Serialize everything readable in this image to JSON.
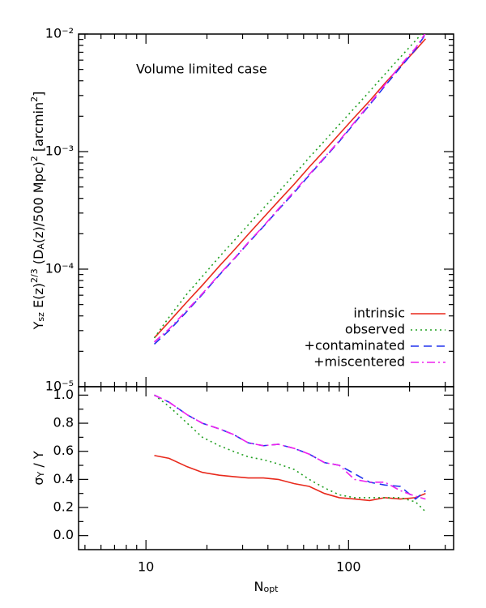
{
  "chart_data": [
    {
      "type": "line",
      "annotation": "Volume limited case",
      "ylabel": [
        {
          "text": "Y"
        },
        {
          "text": "sz",
          "sub": true
        },
        {
          "text": "  E(z)"
        },
        {
          "text": "2/3",
          "sup": true
        },
        {
          "text": " (D"
        },
        {
          "text": "A",
          "sub": true
        },
        {
          "text": "(z)/500 Mpc)"
        },
        {
          "text": "2",
          "sup": true
        },
        {
          "text": " [arcmin"
        },
        {
          "text": "2",
          "sup": true
        },
        {
          "text": "]"
        }
      ],
      "xlog": true,
      "ylog": true,
      "legend": "lower right",
      "xlim": [
        4.65,
        330
      ],
      "ylim": [
        1e-05,
        0.01
      ],
      "xticks": [
        10,
        100
      ],
      "xminorticks": [
        5,
        6,
        7,
        8,
        9,
        20,
        30,
        40,
        50,
        60,
        70,
        80,
        90,
        200,
        300
      ],
      "yticks": [
        {
          "value": 1e-05,
          "label": "10⁻⁵"
        },
        {
          "value": 0.0001,
          "label": "10⁻⁴"
        },
        {
          "value": 0.001,
          "label": "10⁻³"
        },
        {
          "value": 0.01,
          "label": "10⁻²"
        }
      ],
      "yminorticks": [
        2e-05,
        3e-05,
        4e-05,
        5e-05,
        6e-05,
        7e-05,
        8e-05,
        9e-05,
        0.0002,
        0.0003,
        0.0004,
        0.0005,
        0.0006,
        0.0007,
        0.0008,
        0.0009,
        0.002,
        0.003,
        0.004,
        0.005,
        0.006,
        0.007,
        0.008,
        0.009
      ],
      "x": [
        11,
        13,
        16,
        19,
        23,
        27,
        32,
        38,
        45,
        54,
        64,
        76,
        90,
        107,
        127,
        151,
        180,
        214,
        240
      ],
      "series": [
        {
          "name": "intrinsic",
          "color": "#e8291c",
          "linestyle": "solid",
          "values": [
            2.6e-05,
            3.57e-05,
            5.3e-05,
            7.3e-05,
            0.000106,
            0.000143,
            0.000198,
            0.000274,
            0.000378,
            0.00053,
            0.00074,
            0.00102,
            0.00141,
            0.00196,
            0.0027,
            0.0038,
            0.0053,
            0.0073,
            0.0091
          ]
        },
        {
          "name": "observed",
          "color": "#22a022",
          "linestyle": "dotted",
          "values": [
            2.6e-05,
            3.9e-05,
            6.2e-05,
            8.7e-05,
            0.000127,
            0.000172,
            0.000238,
            0.00033,
            0.00045,
            0.00064,
            0.00089,
            0.00123,
            0.0017,
            0.00235,
            0.00325,
            0.00455,
            0.00635,
            0.0088,
            0.011
          ]
        },
        {
          "name": "+contaminated",
          "color": "#2233ee",
          "linestyle": "dashed",
          "values": [
            2.3e-05,
            3e-05,
            4.4e-05,
            6.1e-05,
            8.9e-05,
            0.00012,
            0.000167,
            0.00023,
            0.00032,
            0.00045,
            0.00063,
            0.00088,
            0.00122,
            0.00175,
            0.0025,
            0.0036,
            0.0052,
            0.0074,
            0.01
          ]
        },
        {
          "name": "+miscentered",
          "color": "#ee22ee",
          "linestyle": "dashdot",
          "values": [
            2.4e-05,
            3.1e-05,
            4.5e-05,
            6.2e-05,
            9e-05,
            0.000121,
            0.000169,
            0.000232,
            0.000325,
            0.00046,
            0.00064,
            0.00089,
            0.00124,
            0.00178,
            0.00255,
            0.0037,
            0.0054,
            0.0076,
            0.0102
          ]
        }
      ]
    },
    {
      "type": "line",
      "ylabel": [
        {
          "text": "σ"
        },
        {
          "text": "Y",
          "sub": true
        },
        {
          "text": " / Y"
        }
      ],
      "xlabel": [
        {
          "text": "N"
        },
        {
          "text": "opt",
          "sub": true
        }
      ],
      "xlog": true,
      "ylog": false,
      "xlim": [
        4.65,
        330
      ],
      "ylim": [
        -0.1,
        1.06
      ],
      "xticks": [
        10,
        100
      ],
      "xminorticks": [
        5,
        6,
        7,
        8,
        9,
        20,
        30,
        40,
        50,
        60,
        70,
        80,
        90,
        200,
        300
      ],
      "yticks": [
        {
          "value": 0,
          "label": "0.0"
        },
        0.2,
        0.4,
        0.6,
        0.8,
        {
          "value": 1,
          "label": "1.0"
        }
      ],
      "yminorticks": [
        0.1,
        0.3,
        0.5,
        0.7,
        0.9
      ],
      "x": [
        11,
        13,
        16,
        19,
        23,
        27,
        32,
        38,
        45,
        54,
        64,
        76,
        90,
        107,
        127,
        151,
        180,
        214,
        240
      ],
      "series": [
        {
          "name": "intrinsic",
          "color": "#e8291c",
          "linestyle": "solid",
          "values": [
            0.57,
            0.55,
            0.49,
            0.45,
            0.43,
            0.42,
            0.41,
            0.41,
            0.4,
            0.37,
            0.35,
            0.3,
            0.27,
            0.26,
            0.25,
            0.27,
            0.26,
            0.27,
            0.3
          ]
        },
        {
          "name": "observed",
          "color": "#22a022",
          "linestyle": "dotted",
          "values": [
            1.0,
            0.92,
            0.8,
            0.7,
            0.64,
            0.6,
            0.56,
            0.54,
            0.51,
            0.47,
            0.4,
            0.34,
            0.29,
            0.27,
            0.27,
            0.27,
            0.27,
            0.24,
            0.17
          ]
        },
        {
          "name": "+contaminated",
          "color": "#2233ee",
          "linestyle": "dashed",
          "values": [
            1.0,
            0.95,
            0.86,
            0.8,
            0.76,
            0.72,
            0.66,
            0.64,
            0.65,
            0.62,
            0.58,
            0.52,
            0.5,
            0.44,
            0.38,
            0.36,
            0.35,
            0.26,
            0.32
          ]
        },
        {
          "name": "+miscentered",
          "color": "#ee22ee",
          "linestyle": "dashdot",
          "values": [
            1.0,
            0.95,
            0.86,
            0.8,
            0.76,
            0.72,
            0.66,
            0.64,
            0.65,
            0.62,
            0.58,
            0.52,
            0.5,
            0.4,
            0.38,
            0.38,
            0.32,
            0.28,
            0.26
          ]
        }
      ]
    }
  ]
}
